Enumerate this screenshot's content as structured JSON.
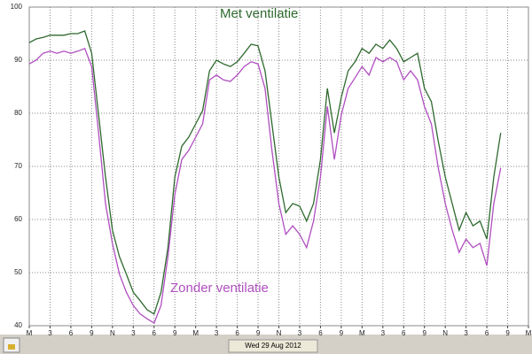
{
  "chart_data": {
    "type": "line",
    "annotations": [
      "Met ventilatie",
      "Zonder ventilatie"
    ],
    "date_label": "Wed 29 Aug 2012",
    "x": [
      0,
      1,
      2,
      3,
      4,
      5,
      6,
      7,
      8,
      9,
      10,
      11,
      12,
      13,
      14,
      15,
      16,
      17,
      18,
      19,
      20,
      21,
      22,
      23,
      24,
      25,
      26,
      27,
      28,
      29,
      30,
      31,
      32,
      33,
      34,
      35,
      36,
      37,
      38,
      39,
      40,
      41,
      42,
      43,
      44,
      45,
      46,
      47,
      48,
      49,
      50,
      51,
      52,
      53,
      54,
      55,
      56,
      57,
      58,
      59,
      60,
      61,
      62,
      63,
      64,
      65,
      66,
      67,
      68
    ],
    "series": [
      {
        "color": "#2f6a2f",
        "values": [
          93.3,
          94,
          94.3,
          94.7,
          94.7,
          94.7,
          95,
          95,
          95.5,
          91.3,
          79.7,
          68,
          58,
          53,
          49.7,
          46.3,
          44.7,
          43,
          42.2,
          46.3,
          54.7,
          68,
          73.8,
          75.5,
          78,
          80.5,
          88,
          90,
          89.3,
          88.8,
          89.7,
          91.3,
          93,
          92.7,
          88,
          78,
          68,
          61.3,
          63,
          62.5,
          59.7,
          63,
          71.3,
          84.7,
          76.3,
          83,
          88,
          89.7,
          92.2,
          91.3,
          93,
          92.2,
          93.8,
          92.2,
          89.7,
          90.5,
          91.3,
          84.7,
          82.2,
          74.7,
          68,
          63,
          58,
          61.3,
          58.8,
          59.7,
          56.3,
          68,
          76.3
        ]
      },
      {
        "color": "#b04fc0",
        "values": [
          89.3,
          90,
          91.3,
          91.7,
          91.3,
          91.7,
          91.3,
          91.7,
          92.2,
          88.8,
          76.3,
          63,
          55.5,
          49.7,
          46.3,
          43.8,
          42.2,
          41.3,
          40.5,
          43.8,
          53,
          64.7,
          71.3,
          73,
          75.5,
          78,
          86.3,
          87.2,
          86.3,
          86,
          87.2,
          88.8,
          89.7,
          89.3,
          84.7,
          73,
          63,
          57.2,
          58.8,
          57.2,
          54.7,
          59.7,
          68,
          81.3,
          71.3,
          79.7,
          84.7,
          86.7,
          88.8,
          87.2,
          90.5,
          89.7,
          90.5,
          89.7,
          86.3,
          88,
          86.3,
          81.3,
          78,
          69.7,
          63,
          58,
          53.8,
          56.3,
          54.7,
          55.5,
          51.3,
          63,
          69.7
        ]
      }
    ],
    "xlim": [
      0,
      72
    ],
    "xticks": [
      {
        "value": 0,
        "label": "M"
      },
      {
        "value": 3,
        "label": "3"
      },
      {
        "value": 6,
        "label": "6"
      },
      {
        "value": 9,
        "label": "9"
      },
      {
        "value": 12,
        "label": "N"
      },
      {
        "value": 15,
        "label": "3"
      },
      {
        "value": 18,
        "label": "6"
      },
      {
        "value": 21,
        "label": "9"
      },
      {
        "value": 24,
        "label": "M"
      },
      {
        "value": 27,
        "label": "3"
      },
      {
        "value": 30,
        "label": "6"
      },
      {
        "value": 33,
        "label": "9"
      },
      {
        "value": 36,
        "label": "N"
      },
      {
        "value": 39,
        "label": "3"
      },
      {
        "value": 42,
        "label": "6"
      },
      {
        "value": 45,
        "label": "9"
      },
      {
        "value": 48,
        "label": "M"
      },
      {
        "value": 51,
        "label": "3"
      },
      {
        "value": 54,
        "label": "6"
      },
      {
        "value": 57,
        "label": "9"
      },
      {
        "value": 60,
        "label": "N"
      },
      {
        "value": 63,
        "label": "3"
      },
      {
        "value": 66,
        "label": "6"
      },
      {
        "value": 69,
        "label": "9"
      },
      {
        "value": 72,
        "label": "M"
      }
    ],
    "ylim": [
      40,
      100
    ],
    "yticks": [
      40,
      50,
      60,
      70,
      80,
      90,
      100
    ],
    "grid": true
  }
}
